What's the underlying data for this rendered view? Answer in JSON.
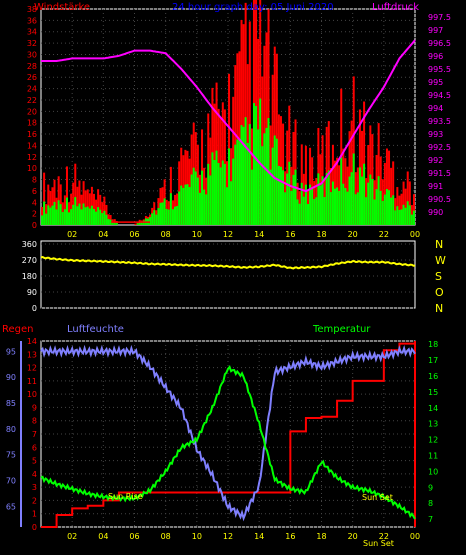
{
  "colors": {
    "background": "#000000",
    "frame": "#ffffff",
    "gust": "#ff0000",
    "wind": "#00ff00",
    "pressure": "#ff00ff",
    "direction": "#ffff00",
    "humidity": "#8080ff",
    "temperature": "#00ff00",
    "rain": "#ff0000",
    "ticks_bottom": "#ffff00",
    "title": "#0000ff",
    "hum_axis": "#8080ff",
    "grid": "#ffffff"
  },
  "chart_data": [
    {
      "type": "bar",
      "title": "24 hour graph day: 05 Juni 2020",
      "left_label": "Windstärke",
      "right_label": "Luftdruck",
      "x_ticks": [
        "02",
        "04",
        "06",
        "08",
        "10",
        "12",
        "14",
        "16",
        "18",
        "20",
        "22",
        "00"
      ],
      "y_left_ticks": [
        "0",
        "2",
        "4",
        "6",
        "8",
        "10",
        "12",
        "14",
        "16",
        "18",
        "20",
        "22",
        "24",
        "26",
        "28",
        "30",
        "32",
        "34",
        "36",
        "38"
      ],
      "y_right_ticks": [
        "990",
        "990.5",
        "991",
        "991.5",
        "992",
        "992.5",
        "993",
        "993.5",
        "994",
        "994.5",
        "995",
        "995.5",
        "996",
        "996.5",
        "997",
        "997.5"
      ],
      "ylim_left": [
        0,
        38
      ],
      "ylim_right": [
        989.5,
        997.8
      ],
      "x_range_hours": [
        0,
        24
      ],
      "series": [
        {
          "role": "gust_peaks",
          "x": [
            0,
            1,
            2,
            3,
            4,
            5,
            6,
            7,
            8,
            9,
            10,
            11,
            12,
            13,
            14,
            15,
            16,
            17,
            18,
            19,
            20,
            21,
            22,
            23,
            24
          ],
          "y": [
            7,
            8,
            9,
            6,
            4,
            0,
            0,
            3,
            7,
            12,
            14,
            19,
            22,
            29,
            37,
            24,
            15,
            12,
            13,
            18,
            21,
            16,
            13,
            9,
            7
          ]
        },
        {
          "role": "wind_mean",
          "x": [
            0,
            1,
            2,
            3,
            4,
            5,
            6,
            7,
            8,
            9,
            10,
            11,
            12,
            13,
            14,
            15,
            16,
            17,
            18,
            19,
            20,
            21,
            22,
            23,
            24
          ],
          "y": [
            3,
            4,
            4,
            3,
            2,
            0,
            0,
            2,
            4,
            6,
            8,
            10,
            11,
            14,
            18,
            12,
            8,
            6,
            7,
            9,
            10,
            8,
            6,
            4,
            3
          ]
        },
        {
          "role": "pressure",
          "x": [
            0,
            1,
            2,
            3,
            4,
            5,
            6,
            7,
            8,
            9,
            10,
            11,
            12,
            13,
            14,
            15,
            16,
            17,
            18,
            19,
            20,
            21,
            22,
            23,
            24
          ],
          "y": [
            995.8,
            995.8,
            995.9,
            995.9,
            995.9,
            996.0,
            996.2,
            996.2,
            996.1,
            995.5,
            994.8,
            994.0,
            993.3,
            992.6,
            991.9,
            991.3,
            991.0,
            990.8,
            991.1,
            991.9,
            992.9,
            993.9,
            994.8,
            995.9,
            996.6
          ]
        }
      ]
    },
    {
      "type": "line",
      "right_labels": [
        "N",
        "W",
        "S",
        "O",
        "N"
      ],
      "y_ticks": [
        "0",
        "90",
        "180",
        "270",
        "360"
      ],
      "ylim": [
        0,
        360
      ],
      "x": [
        0,
        1,
        2,
        3,
        4,
        5,
        6,
        7,
        8,
        9,
        10,
        11,
        12,
        13,
        14,
        15,
        16,
        17,
        18,
        19,
        20,
        21,
        22,
        23,
        24
      ],
      "series": [
        {
          "role": "wind_direction",
          "y": [
            285,
            275,
            268,
            265,
            262,
            258,
            254,
            248,
            246,
            242,
            240,
            238,
            234,
            228,
            232,
            242,
            225,
            228,
            232,
            250,
            262,
            258,
            258,
            247,
            240
          ]
        }
      ]
    },
    {
      "type": "line",
      "left_label_rain": "Regen",
      "left_label_humidity": "Luftfeuchte",
      "right_label": "Temperatur",
      "sunrise_label": "Sun Rise",
      "sunset_label": "Sun Set",
      "bottom_sunset_label": "Sun Set",
      "x_ticks": [
        "02",
        "04",
        "06",
        "08",
        "10",
        "12",
        "14",
        "16",
        "18",
        "20",
        "22",
        "00"
      ],
      "y_rain_ticks": [
        "0",
        "1",
        "2",
        "3",
        "4",
        "5",
        "6",
        "7",
        "8",
        "9",
        "10",
        "11",
        "12",
        "13",
        "14"
      ],
      "y_hum_ticks": [
        "65",
        "70",
        "75",
        "80",
        "85",
        "90",
        "95"
      ],
      "y_temp_ticks": [
        "7",
        "8",
        "9",
        "10",
        "11",
        "12",
        "13",
        "14",
        "15",
        "16",
        "17",
        "18"
      ],
      "ylim_rain": [
        0,
        14
      ],
      "ylim_humidity": [
        61,
        97
      ],
      "ylim_temp": [
        6.5,
        18.2
      ],
      "series": [
        {
          "name": "Luftfeuchte",
          "x": [
            0,
            1,
            2,
            3,
            4,
            5,
            6,
            7,
            8,
            9,
            10,
            11,
            12,
            13,
            14,
            15,
            16,
            17,
            18,
            19,
            20,
            21,
            22,
            23,
            24
          ],
          "y": [
            95,
            95,
            95,
            95,
            95,
            95,
            95,
            92,
            88,
            84,
            76,
            71,
            65,
            63,
            69,
            91,
            92,
            93,
            92,
            93,
            94,
            94,
            94,
            95,
            95
          ]
        },
        {
          "name": "Temperatur",
          "x": [
            0,
            1,
            2,
            3,
            4,
            5,
            6,
            7,
            8,
            9,
            10,
            11,
            12,
            13,
            14,
            15,
            16,
            17,
            18,
            19,
            20,
            21,
            22,
            23,
            24
          ],
          "y": [
            9.6,
            9.2,
            8.9,
            8.6,
            8.4,
            8.3,
            8.3,
            8.8,
            10.0,
            11.5,
            12.0,
            14.0,
            16.5,
            16.0,
            13.0,
            9.5,
            8.9,
            8.7,
            10.6,
            9.6,
            9.0,
            8.8,
            8.4,
            7.8,
            7.1
          ]
        },
        {
          "name": "Regen",
          "x": [
            0,
            1,
            2,
            3,
            4,
            5,
            6,
            7,
            8,
            9,
            10,
            11,
            12,
            13,
            14,
            15,
            16,
            17,
            18,
            19,
            20,
            21,
            22,
            23,
            24
          ],
          "y": [
            0,
            0.9,
            1.4,
            1.6,
            2.0,
            2.6,
            2.6,
            2.6,
            2.6,
            2.6,
            2.6,
            2.6,
            2.6,
            2.6,
            2.6,
            2.6,
            7.2,
            8.2,
            8.3,
            9.5,
            11.0,
            11.0,
            13.3,
            13.8,
            14.0
          ]
        }
      ]
    }
  ]
}
